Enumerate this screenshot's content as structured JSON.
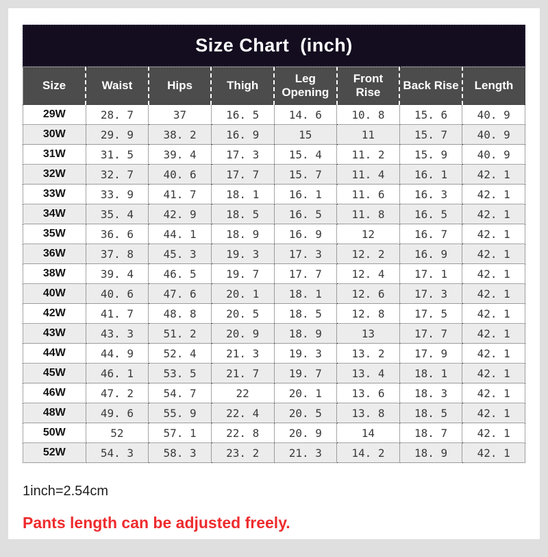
{
  "page": {
    "title": "Size Chart  (inch)",
    "unit_note": "1inch=2.54cm",
    "footnote": "Pants length can be adjusted freely."
  },
  "colors": {
    "page_background": "#dfdfdf",
    "card_background": "#ffffff",
    "title_bar_background": "#140d1f",
    "title_text": "#ffffff",
    "header_background": "#4c4c4c",
    "header_text": "#ffffff",
    "row_alt_background": "#ececec",
    "cell_text": "#3a3a3a",
    "border_dotted": "#4a4a4a",
    "footnote_red": "#ee2b2e"
  },
  "table": {
    "columns": [
      "Size",
      "Waist",
      "Hips",
      "Thigh",
      "Leg Opening",
      "Front Rise",
      "Back Rise",
      "Length"
    ],
    "rows": [
      [
        "29W",
        "28. 7",
        "37",
        "16. 5",
        "14. 6",
        "10. 8",
        "15. 6",
        "40. 9"
      ],
      [
        "30W",
        "29. 9",
        "38. 2",
        "16. 9",
        "15",
        "11",
        "15. 7",
        "40. 9"
      ],
      [
        "31W",
        "31. 5",
        "39. 4",
        "17. 3",
        "15. 4",
        "11. 2",
        "15. 9",
        "40. 9"
      ],
      [
        "32W",
        "32. 7",
        "40. 6",
        "17. 7",
        "15. 7",
        "11. 4",
        "16. 1",
        "42. 1"
      ],
      [
        "33W",
        "33. 9",
        "41. 7",
        "18. 1",
        "16. 1",
        "11. 6",
        "16. 3",
        "42. 1"
      ],
      [
        "34W",
        "35. 4",
        "42. 9",
        "18. 5",
        "16. 5",
        "11. 8",
        "16. 5",
        "42. 1"
      ],
      [
        "35W",
        "36. 6",
        "44. 1",
        "18. 9",
        "16. 9",
        "12",
        "16. 7",
        "42. 1"
      ],
      [
        "36W",
        "37. 8",
        "45. 3",
        "19. 3",
        "17. 3",
        "12. 2",
        "16. 9",
        "42. 1"
      ],
      [
        "38W",
        "39. 4",
        "46. 5",
        "19. 7",
        "17. 7",
        "12. 4",
        "17. 1",
        "42. 1"
      ],
      [
        "40W",
        "40. 6",
        "47. 6",
        "20. 1",
        "18. 1",
        "12. 6",
        "17. 3",
        "42. 1"
      ],
      [
        "42W",
        "41. 7",
        "48. 8",
        "20. 5",
        "18. 5",
        "12. 8",
        "17. 5",
        "42. 1"
      ],
      [
        "43W",
        "43. 3",
        "51. 2",
        "20. 9",
        "18. 9",
        "13",
        "17. 7",
        "42. 1"
      ],
      [
        "44W",
        "44. 9",
        "52. 4",
        "21. 3",
        "19. 3",
        "13. 2",
        "17. 9",
        "42. 1"
      ],
      [
        "45W",
        "46. 1",
        "53. 5",
        "21. 7",
        "19. 7",
        "13. 4",
        "18. 1",
        "42. 1"
      ],
      [
        "46W",
        "47. 2",
        "54. 7",
        "22",
        "20. 1",
        "13. 6",
        "18. 3",
        "42. 1"
      ],
      [
        "48W",
        "49. 6",
        "55. 9",
        "22. 4",
        "20. 5",
        "13. 8",
        "18. 5",
        "42. 1"
      ],
      [
        "50W",
        "52",
        "57. 1",
        "22. 8",
        "20. 9",
        "14",
        "18. 7",
        "42. 1"
      ],
      [
        "52W",
        "54. 3",
        "58. 3",
        "23. 2",
        "21. 3",
        "14. 2",
        "18. 9",
        "42. 1"
      ]
    ]
  }
}
